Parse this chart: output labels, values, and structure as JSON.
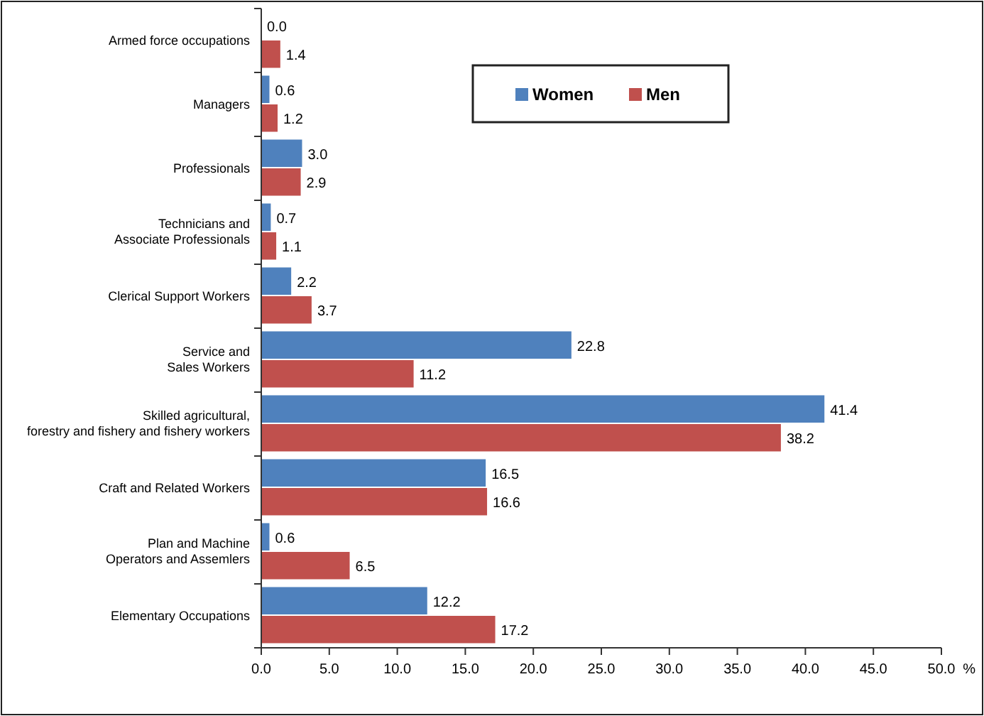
{
  "chart_data": {
    "type": "bar",
    "orientation": "horizontal",
    "xlabel": "%",
    "categories": [
      "Armed force occupations",
      "Managers",
      "Professionals",
      "Technicians and\nAssociate Professionals",
      "Clerical Support Workers",
      "Service and\nSales Workers",
      "Skilled agricultural,\nforestry and fishery and fishery workers",
      "Craft and Related Workers",
      "Plan and Machine\nOperators and Assemlers",
      "Elementary Occupations"
    ],
    "series": [
      {
        "name": "Women",
        "color": "#4f81bd",
        "values": [
          0.0,
          0.6,
          3.0,
          0.7,
          2.2,
          22.8,
          41.4,
          16.5,
          0.6,
          12.2
        ],
        "value_labels": [
          "0.0",
          "0.6",
          "3.0",
          "0.7",
          "2.2",
          "22.8",
          "41.4",
          "16.5",
          "0.6",
          "12.2"
        ]
      },
      {
        "name": "Men",
        "color": "#c0504d",
        "values": [
          1.4,
          1.2,
          2.9,
          1.1,
          3.7,
          11.2,
          38.2,
          16.6,
          6.5,
          17.2
        ],
        "value_labels": [
          "1.4",
          "1.2",
          "2.9",
          "1.1",
          "3.7",
          "11.2",
          "38.2",
          "16.6",
          "6.5",
          "17.2"
        ]
      }
    ],
    "xlim": [
      0,
      50
    ],
    "xticks": [
      {
        "value": 0,
        "label": "0.0"
      },
      {
        "value": 5,
        "label": "5.0"
      },
      {
        "value": 10,
        "label": "10.0"
      },
      {
        "value": 15,
        "label": "15.0"
      },
      {
        "value": 20,
        "label": "20.0"
      },
      {
        "value": 25,
        "label": "25.0"
      },
      {
        "value": 30,
        "label": "30.0"
      },
      {
        "value": 35,
        "label": "35.0"
      },
      {
        "value": 40,
        "label": "40.0"
      },
      {
        "value": 45,
        "label": "45.0"
      },
      {
        "value": 50,
        "label": "50.0"
      }
    ],
    "legend": "top right",
    "grid": false
  }
}
